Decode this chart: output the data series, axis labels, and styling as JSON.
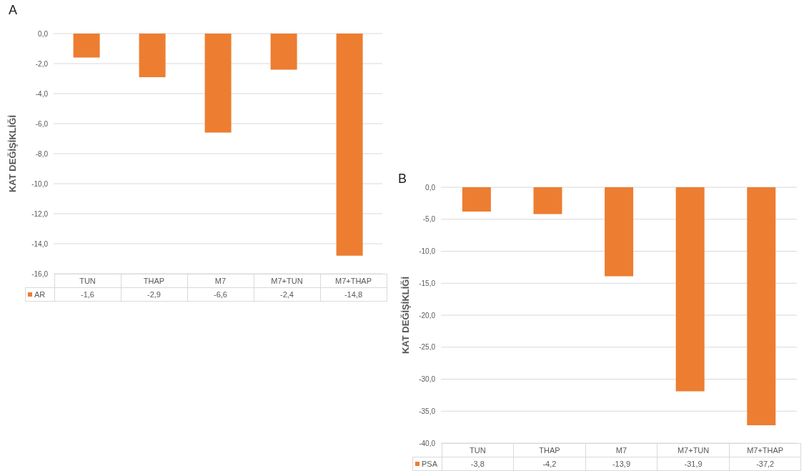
{
  "chart_data": [
    {
      "type": "bar",
      "title": "A",
      "ylabel": "KAT DEĞİŞİKLİĞİ",
      "categories": [
        "TUN",
        "THAP",
        "M7",
        "M7+TUN",
        "M7+THAP"
      ],
      "series": [
        {
          "name": "AR",
          "color": "#ed7d31",
          "values": [
            -1.6,
            -2.9,
            -6.6,
            -2.4,
            -14.8
          ],
          "value_labels": [
            "-1,6",
            "-2,9",
            "-6,6",
            "-2,4",
            "-14,8"
          ]
        }
      ],
      "ylim": [
        -16,
        0
      ],
      "yticks": [
        {
          "value": 0,
          "label": "0,0"
        },
        {
          "value": -2,
          "label": "-2,0"
        },
        {
          "value": -4,
          "label": "-4,0"
        },
        {
          "value": -6,
          "label": "-6,0"
        },
        {
          "value": -8,
          "label": "-8,0"
        },
        {
          "value": -10,
          "label": "-10,0"
        },
        {
          "value": -12,
          "label": "-12,0"
        },
        {
          "value": -14,
          "label": "-14,0"
        },
        {
          "value": -16,
          "label": "-16,0"
        }
      ],
      "grid": "y"
    },
    {
      "type": "bar",
      "title": "B",
      "ylabel": "KAT DEĞİŞİKLİĞİ",
      "categories": [
        "TUN",
        "THAP",
        "M7",
        "M7+TUN",
        "M7+THAP"
      ],
      "series": [
        {
          "name": "PSA",
          "color": "#ed7d31",
          "values": [
            -3.8,
            -4.2,
            -13.9,
            -31.9,
            -37.2
          ],
          "value_labels": [
            "-3,8",
            "-4,2",
            "-13,9",
            "-31,9",
            "-37,2"
          ]
        }
      ],
      "ylim": [
        -40,
        0
      ],
      "yticks": [
        {
          "value": 0,
          "label": "0,0"
        },
        {
          "value": -5,
          "label": "-5,0"
        },
        {
          "value": -10,
          "label": "-10,0"
        },
        {
          "value": -15,
          "label": "-15,0"
        },
        {
          "value": -20,
          "label": "-20,0"
        },
        {
          "value": -25,
          "label": "-25,0"
        },
        {
          "value": -30,
          "label": "-30,0"
        },
        {
          "value": -35,
          "label": "-35,0"
        },
        {
          "value": -40,
          "label": "-40,0"
        }
      ],
      "grid": "y"
    }
  ]
}
